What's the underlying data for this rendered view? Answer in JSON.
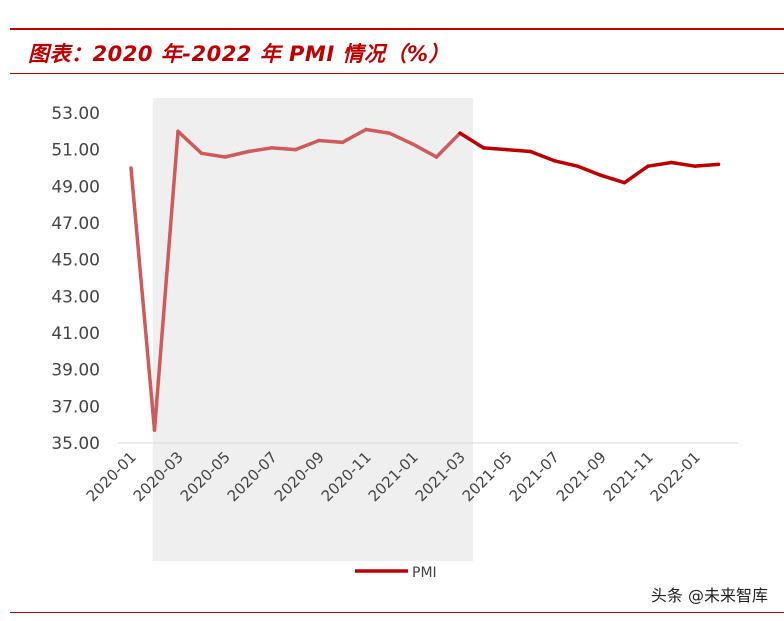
{
  "title": "图表：2020 年-2022 年 PMI 情况（%）",
  "watermark": "头条 @未来智库",
  "colors": {
    "accent": "#c00000",
    "line": "#c00000",
    "shaded_line": "#d05a5a",
    "shade": "#efefef"
  },
  "chart_data": {
    "type": "line",
    "title": "",
    "xlabel": "",
    "ylabel": "",
    "ylim": [
      35,
      53
    ],
    "yticks": [
      "53.00",
      "51.00",
      "49.00",
      "47.00",
      "45.00",
      "43.00",
      "41.00",
      "39.00",
      "37.00",
      "35.00"
    ],
    "x": [
      "2020-01",
      "2020-02",
      "2020-03",
      "2020-04",
      "2020-05",
      "2020-06",
      "2020-07",
      "2020-08",
      "2020-09",
      "2020-10",
      "2020-11",
      "2020-12",
      "2021-01",
      "2021-02",
      "2021-03",
      "2021-04",
      "2021-05",
      "2021-06",
      "2021-07",
      "2021-08",
      "2021-09",
      "2021-10",
      "2021-11",
      "2021-12",
      "2022-01",
      "2022-02"
    ],
    "xtick_labels": [
      "2020-01",
      "2020-03",
      "2020-05",
      "2020-07",
      "2020-09",
      "2020-11",
      "2021-01",
      "2021-03",
      "2021-05",
      "2021-07",
      "2021-09",
      "2021-11",
      "2022-01"
    ],
    "series": [
      {
        "name": "PMI",
        "values": [
          50.0,
          35.7,
          52.0,
          50.8,
          50.6,
          50.9,
          51.1,
          51.0,
          51.5,
          51.4,
          52.1,
          51.9,
          51.3,
          50.6,
          51.9,
          51.1,
          51.0,
          50.9,
          50.4,
          50.1,
          49.6,
          49.2,
          50.1,
          50.3,
          50.1,
          50.2
        ]
      }
    ],
    "shaded_range": [
      "2020-02",
      "2021-03"
    ],
    "legend_position": "bottom",
    "grid": false
  }
}
